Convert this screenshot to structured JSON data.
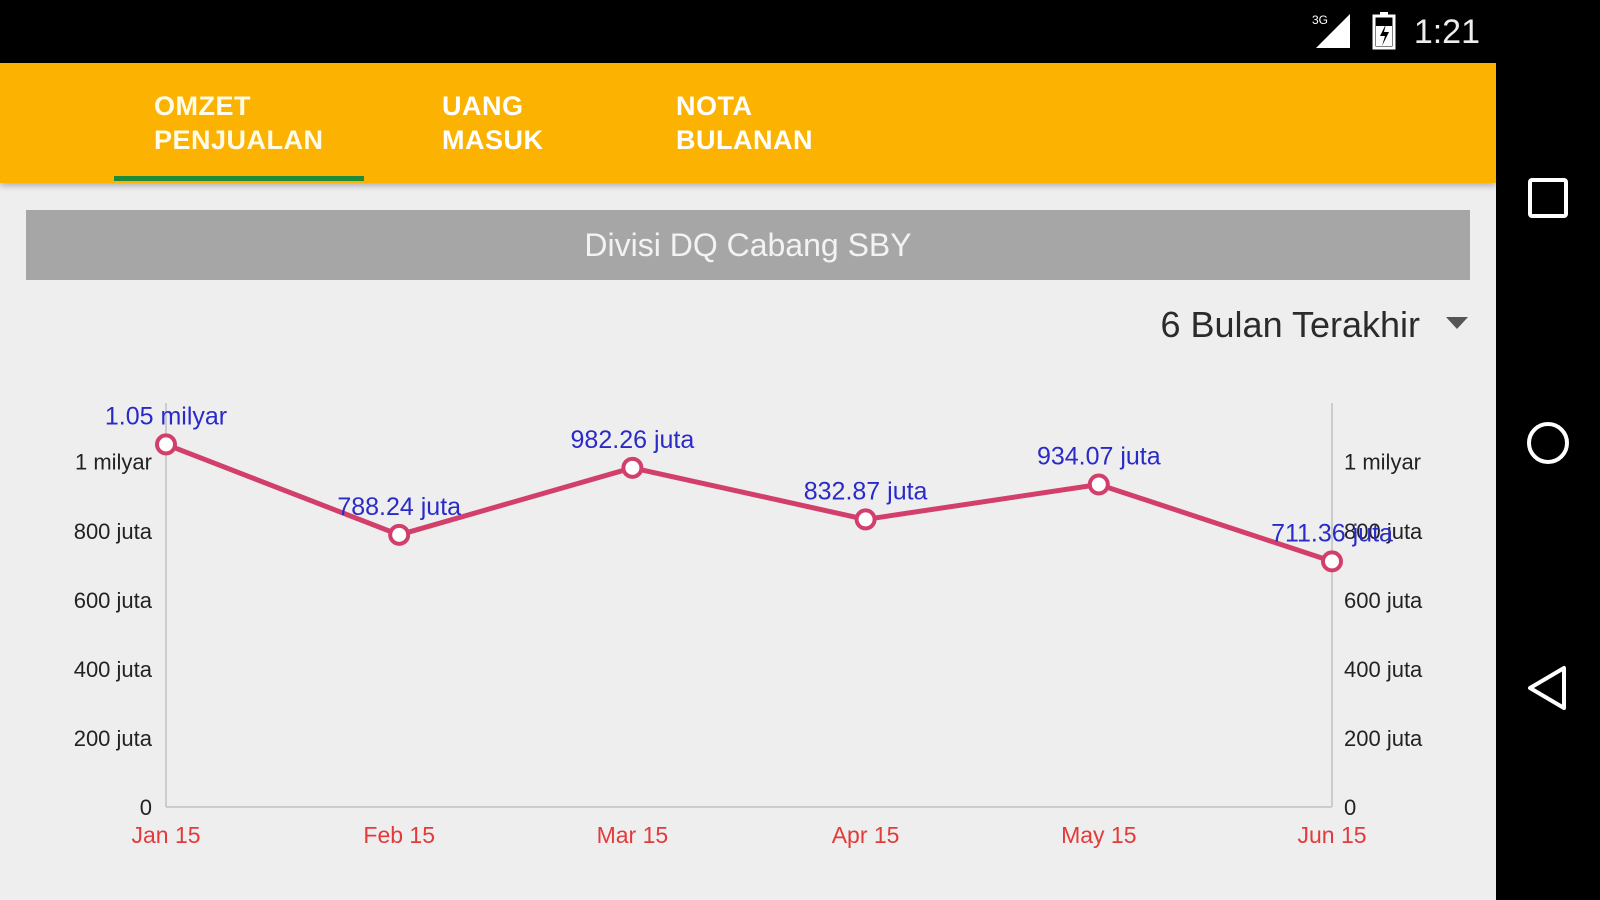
{
  "status": {
    "time": "1:21",
    "network": "3G",
    "icons": [
      "signal-icon",
      "battery-icon"
    ]
  },
  "tabs": [
    {
      "label": "OMZET PENJUALAN",
      "active": true
    },
    {
      "label": "UANG MASUK",
      "active": false
    },
    {
      "label": "NOTA BULANAN",
      "active": false
    }
  ],
  "banner": {
    "title": "Divisi DQ Cabang SBY"
  },
  "period": {
    "selected": "6 Bulan Terakhir"
  },
  "nav": {
    "icons": [
      "recent-apps-icon",
      "home-icon",
      "back-icon"
    ]
  },
  "colors": {
    "tabbar": "#fbb200",
    "tab_indicator": "#1e8a3a",
    "line": "#d23f6b",
    "point_label": "#2a2ac8",
    "x_tick": "#e33a3a"
  },
  "chart_data": {
    "type": "line",
    "categories": [
      "Jan 15",
      "Feb 15",
      "Mar 15",
      "Apr 15",
      "May 15",
      "Jun 15"
    ],
    "values": [
      1050000000,
      788240000,
      982260000,
      832870000,
      934070000,
      711360000
    ],
    "data_labels": [
      "1.05 milyar",
      "788.24 juta",
      "982.26 juta",
      "832.87 juta",
      "934.07 juta",
      "711.36 juta"
    ],
    "y_ticks": [
      0,
      200000000,
      400000000,
      600000000,
      800000000,
      1000000000
    ],
    "y_tick_labels": [
      "0",
      "200 juta",
      "400 juta",
      "600 juta",
      "800 juta",
      "1 milyar"
    ],
    "ylim": [
      0,
      1170000000
    ],
    "dual_y_axis": true,
    "grid": false,
    "legend": "none"
  }
}
